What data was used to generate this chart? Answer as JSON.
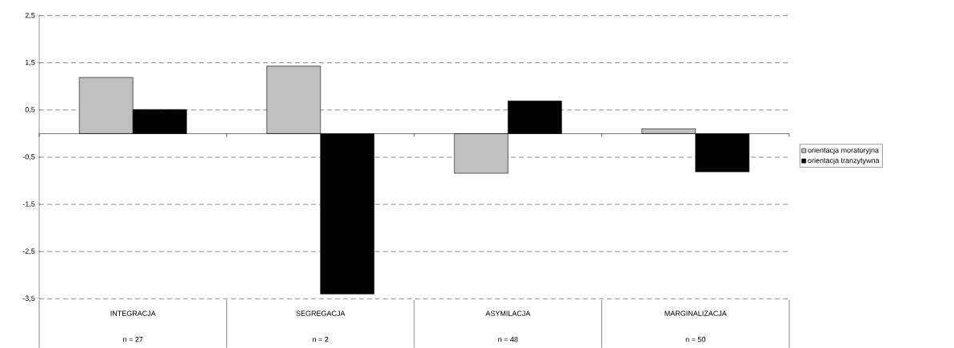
{
  "chart_data": {
    "type": "bar",
    "categories": [
      "INTEGRACJA",
      "SEGREGACJA",
      "ASYMILACJA",
      "MARGINALIZACJA"
    ],
    "series": [
      {
        "name": "orientacja moratoryjna",
        "color": "#c0c0c0",
        "values": [
          1.19,
          1.43,
          -0.84,
          0.1
        ]
      },
      {
        "name": "orientacja tranzytywna",
        "color": "#000000",
        "values": [
          0.51,
          -3.4,
          0.69,
          -0.81
        ]
      }
    ],
    "ylim": [
      -3.5,
      2.5
    ],
    "yticks": [
      {
        "value": 2.5,
        "label": "2,5"
      },
      {
        "value": 1.5,
        "label": "1,5"
      },
      {
        "value": 0.5,
        "label": "0,5"
      },
      {
        "value": -0.5,
        "label": "-0,5"
      },
      {
        "value": -1.5,
        "label": "-1,5"
      },
      {
        "value": -2.5,
        "label": "-2,5"
      },
      {
        "value": -3.5,
        "label": "-3,5"
      }
    ],
    "grid": "y",
    "legend": "right",
    "annotations": [
      "n = 27",
      "n = 2",
      "n = 48",
      "n = 50"
    ]
  }
}
